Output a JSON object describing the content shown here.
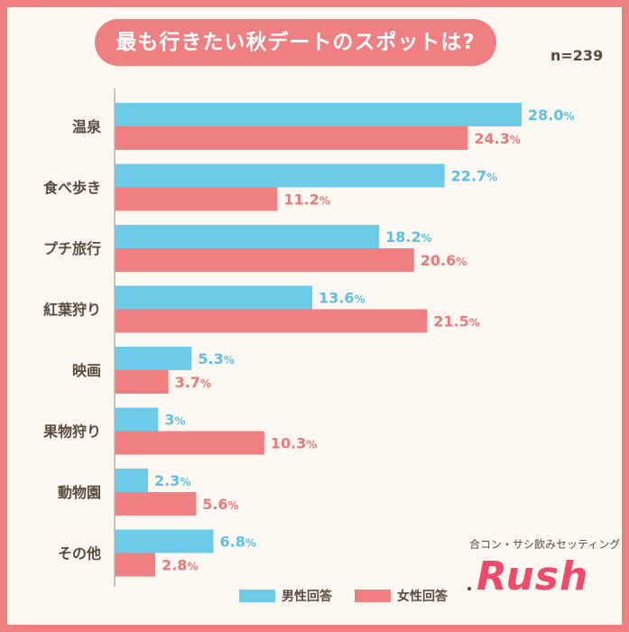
{
  "title": "最も行きたい秋デートのスポットは?",
  "sample_size": "n=239",
  "legend": {
    "male": "男性回答",
    "female": "女性回答"
  },
  "brand": {
    "tagline": "合コン・サシ飲みセッティング",
    "logo": "Rush"
  },
  "colors": {
    "male": "#6ccbe8",
    "female": "#ef7f80",
    "male_text": "#5bc0e3",
    "female_text": "#e87a7c",
    "frame": "#ef7f80",
    "background": "#fdf8f2",
    "logo": "#ee4b6a"
  },
  "chart_data": {
    "type": "bar",
    "orientation": "horizontal",
    "categories": [
      "温泉",
      "食べ歩き",
      "プチ旅行",
      "紅葉狩り",
      "映画",
      "果物狩り",
      "動物園",
      "その他"
    ],
    "series": [
      {
        "name": "男性回答",
        "values": [
          28.0,
          22.7,
          18.2,
          13.6,
          5.3,
          3,
          2.3,
          6.8
        ],
        "labels": [
          "28.0",
          "22.7",
          "18.2",
          "13.6",
          "5.3",
          "3",
          "2.3",
          "6.8"
        ]
      },
      {
        "name": "女性回答",
        "values": [
          24.3,
          11.2,
          20.6,
          21.5,
          3.7,
          10.3,
          5.6,
          2.8
        ],
        "labels": [
          "24.3",
          "11.2",
          "20.6",
          "21.5",
          "3.7",
          "10.3",
          "5.6",
          "2.8"
        ]
      }
    ],
    "unit": "%",
    "xlim": [
      0,
      28.0
    ],
    "grid": false,
    "legend_position": "bottom"
  }
}
